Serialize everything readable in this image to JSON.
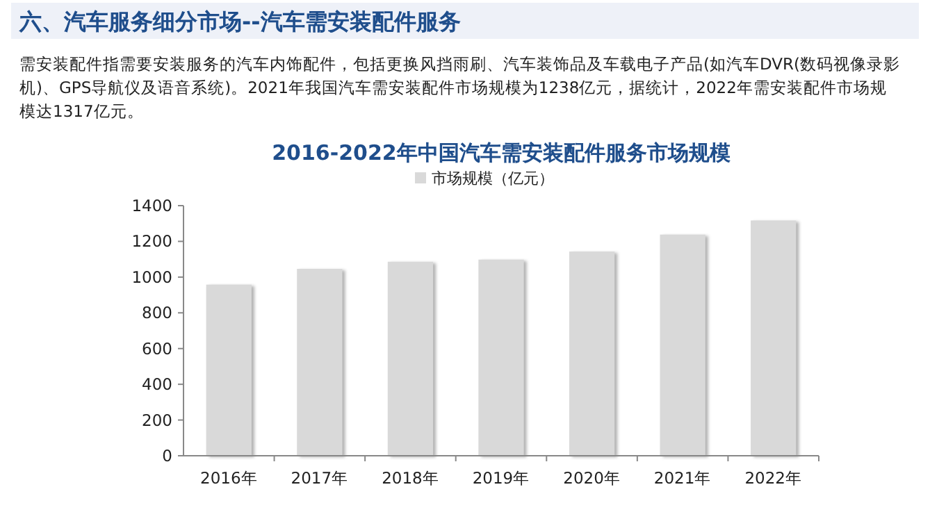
{
  "chart_data": {
    "type": "bar",
    "title": "2016-2022年中国汽车需安装配件服务市场规模",
    "subtitle": "六、汽车服务细分市场--汽车需安装配件服务",
    "annotations": [
      "需安装配件指需要安装服务的汽车内饰配件，包括更换风挡雨刷、汽车装饰品及车载电子产品(如汽车DVR(数码视像录影机)、GPS导航仪及语音系统)。2021年我国汽车需安装配件市场规模为1238亿元，据统计，2022年需安装配件市场规模达1317亿元。"
    ],
    "categories": [
      "2016年",
      "2017年",
      "2018年",
      "2019年",
      "2020年",
      "2021年",
      "2022年"
    ],
    "series": [
      {
        "name": "市场规模（亿元）",
        "color": "#d9d9d9",
        "values": [
          958,
          1046,
          1086,
          1098,
          1143,
          1238,
          1317
        ]
      }
    ],
    "ylim": [
      0,
      1400
    ],
    "yticks": [
      0,
      200,
      400,
      600,
      800,
      1000,
      1200,
      1400
    ],
    "grid": false,
    "legend": "top"
  }
}
